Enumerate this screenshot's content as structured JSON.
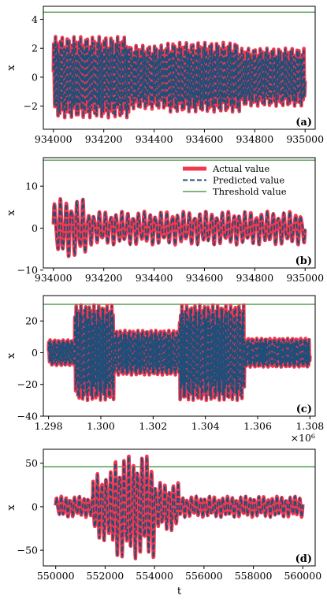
{
  "colors": {
    "actual": "#f0394f",
    "predicted": "#1f4e79",
    "threshold": "#2e8b2e"
  },
  "legend": {
    "actual": "Actual value",
    "predicted": "Predicted value",
    "threshold": "Threshold value"
  },
  "chart_data": [
    {
      "type": "line",
      "panel_label": "(a)",
      "xlabel": "",
      "ylabel": "x",
      "xlim": [
        933960,
        935040
      ],
      "ylim": [
        -3.6,
        4.9
      ],
      "xticks": [
        934000,
        934200,
        934400,
        934600,
        934800,
        935000
      ],
      "xtick_labels": [
        "934000",
        "934200",
        "934400",
        "934600",
        "934800",
        "935000"
      ],
      "yticks": [
        -2,
        0,
        2,
        4
      ],
      "ytick_labels": [
        "−2",
        "0",
        "2",
        "4"
      ],
      "threshold": 4.5,
      "x_exponent_label": "",
      "legend": false,
      "signal": {
        "x_start": 934000,
        "x_end": 935000,
        "periods": 150,
        "segments": [
          {
            "x0": 934000,
            "x1": 934300,
            "amp": 2.8
          },
          {
            "x0": 934300,
            "x1": 934450,
            "amp": 2.2
          },
          {
            "x0": 934450,
            "x1": 934740,
            "amp": 2.4
          },
          {
            "x0": 934740,
            "x1": 935000,
            "amp": 2.0
          }
        ]
      }
    },
    {
      "type": "line",
      "panel_label": "(b)",
      "xlabel": "",
      "ylabel": "x",
      "xlim": [
        933960,
        935040
      ],
      "ylim": [
        -9.5,
        16.8
      ],
      "xticks": [
        934000,
        934200,
        934400,
        934600,
        934800,
        935000
      ],
      "xtick_labels": [
        "934000",
        "934200",
        "934400",
        "934600",
        "934800",
        "935000"
      ],
      "yticks": [
        -10,
        0,
        10
      ],
      "ytick_labels": [
        "−10",
        "0",
        "10"
      ],
      "threshold": 16.2,
      "x_exponent_label": "",
      "legend": true,
      "signal": {
        "x_start": 934000,
        "x_end": 935000,
        "periods": 45,
        "segments": [
          {
            "x0": 934000,
            "x1": 934130,
            "amp": 7.0
          },
          {
            "x0": 934130,
            "x1": 935000,
            "amp": 4.0
          }
        ]
      }
    },
    {
      "type": "line",
      "panel_label": "(c)",
      "xlabel": "",
      "ylabel": "x",
      "xlim": [
        1297800,
        1308200
      ],
      "ylim": [
        -40,
        36
      ],
      "xticks": [
        1298000,
        1300000,
        1302000,
        1304000,
        1306000,
        1308000
      ],
      "xtick_labels": [
        "1.298",
        "1.300",
        "1.302",
        "1.304",
        "1.306",
        "1.308"
      ],
      "yticks": [
        -40,
        -20,
        0,
        20
      ],
      "ytick_labels": [
        "−40",
        "−20",
        "0",
        "20"
      ],
      "threshold": 30.5,
      "x_exponent_label": "×10⁶",
      "legend": false,
      "signal": {
        "x_start": 1298000,
        "x_end": 1308000,
        "periods": 220,
        "segments": [
          {
            "x0": 1298000,
            "x1": 1299000,
            "amp": 8
          },
          {
            "x0": 1299000,
            "x1": 1300500,
            "amp": 30
          },
          {
            "x0": 1300500,
            "x1": 1303000,
            "amp": 14
          },
          {
            "x0": 1303000,
            "x1": 1305500,
            "amp": 30
          },
          {
            "x0": 1305500,
            "x1": 1308000,
            "amp": 9
          }
        ]
      }
    },
    {
      "type": "line",
      "panel_label": "(d)",
      "xlabel": "t",
      "ylabel": "x",
      "xlim": [
        549500,
        560500
      ],
      "ylim": [
        -68,
        66
      ],
      "xticks": [
        550000,
        552000,
        554000,
        556000,
        558000,
        560000
      ],
      "xtick_labels": [
        "550000",
        "552000",
        "554000",
        "556000",
        "558000",
        "560000"
      ],
      "yticks": [
        -50,
        0,
        50
      ],
      "ytick_labels": [
        "−50",
        "0",
        "50"
      ],
      "threshold": 46,
      "x_exponent_label": "",
      "legend": false,
      "signal": {
        "x_start": 550000,
        "x_end": 560000,
        "periods": 55,
        "segments": [
          {
            "x0": 550000,
            "x1": 551500,
            "amp": 12
          },
          {
            "x0": 551500,
            "x1": 552300,
            "amp": 40
          },
          {
            "x0": 552300,
            "x1": 554000,
            "amp": 60
          },
          {
            "x0": 554000,
            "x1": 555000,
            "amp": 28
          },
          {
            "x0": 555000,
            "x1": 560000,
            "amp": 12
          }
        ]
      }
    }
  ]
}
